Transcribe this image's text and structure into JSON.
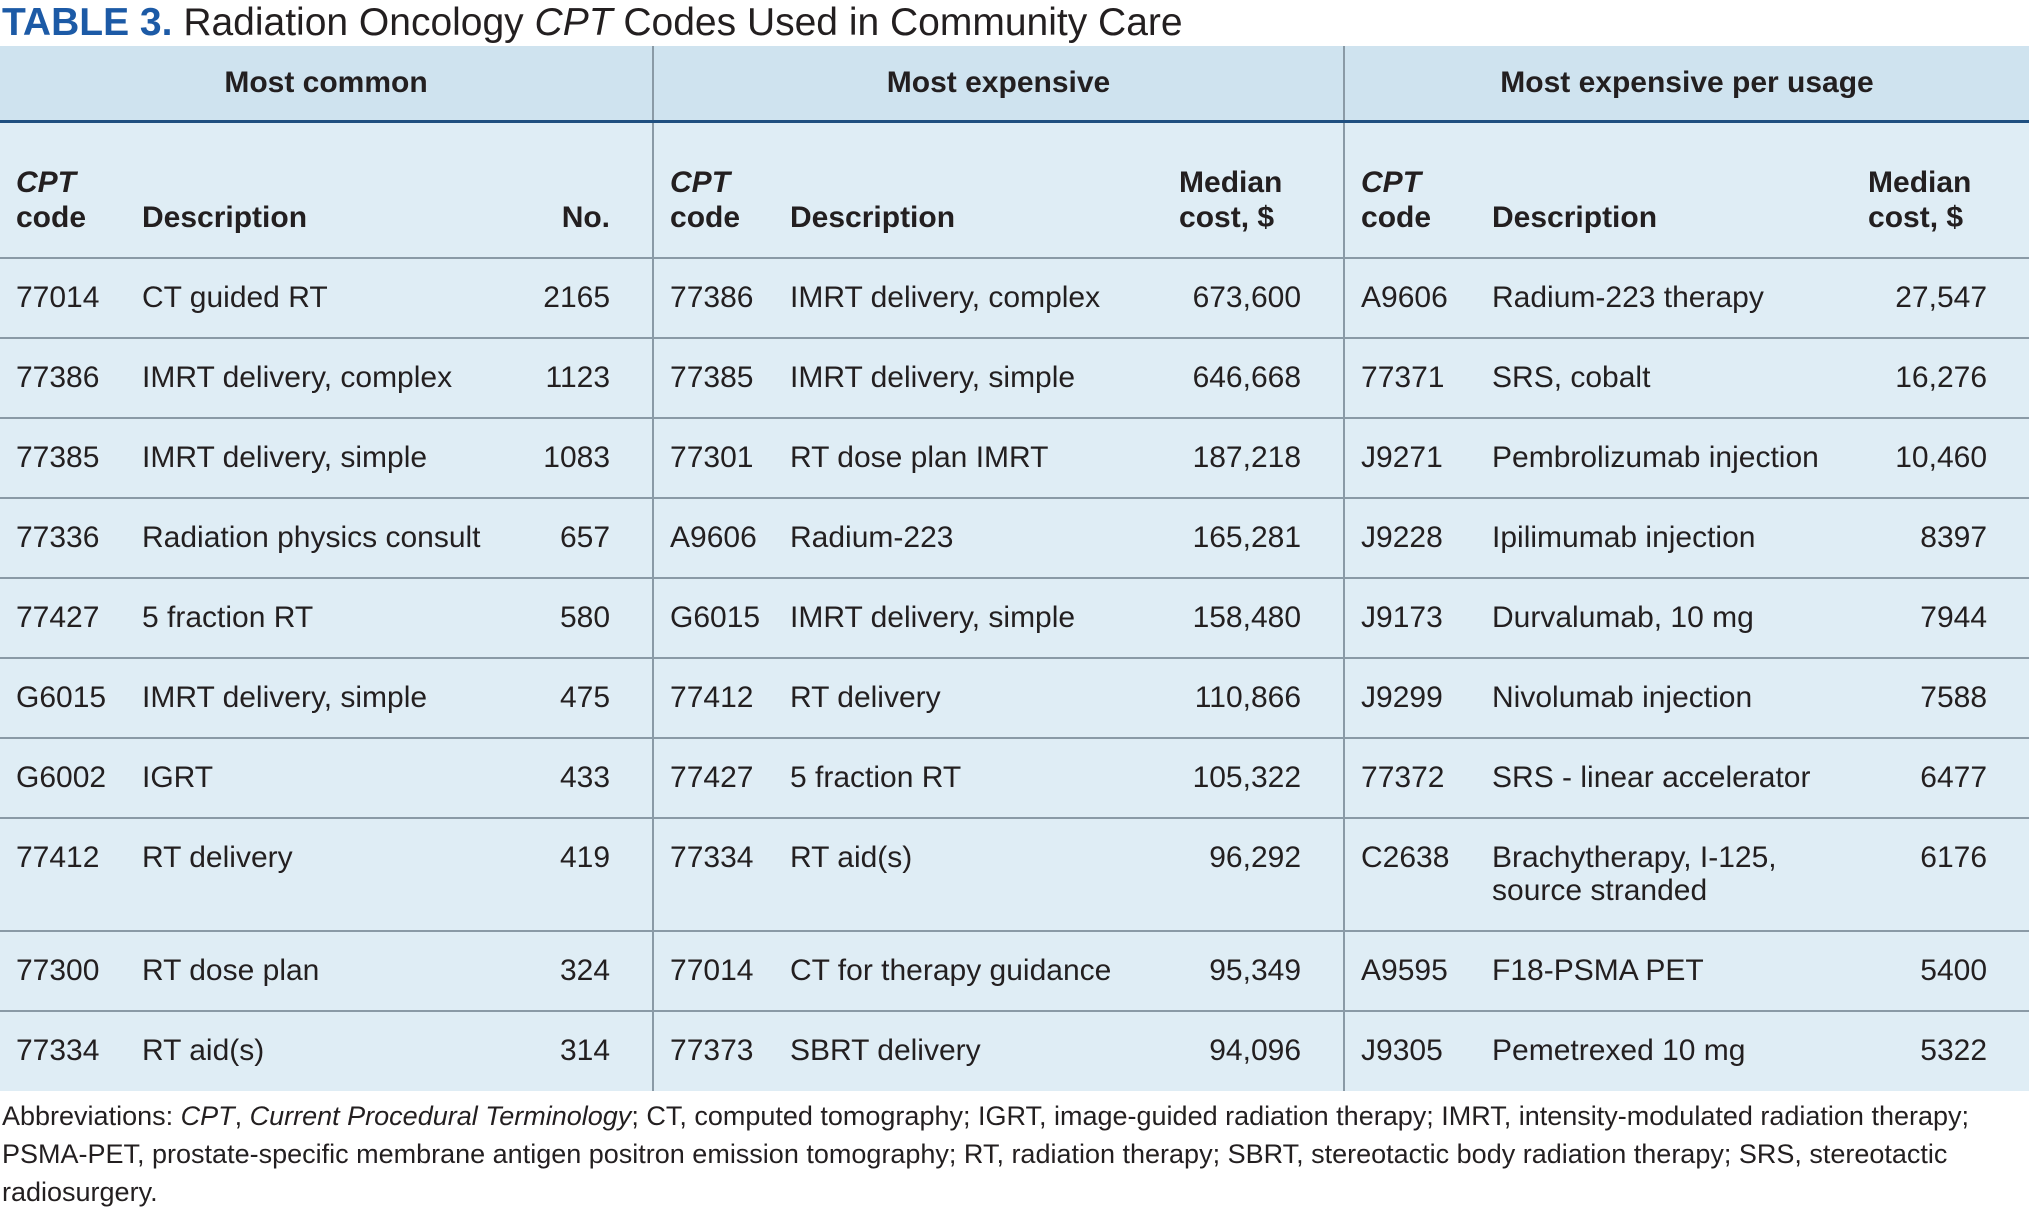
{
  "title": {
    "label": "TABLE 3.",
    "pre": "Radiation Oncology",
    "cpt": "CPT",
    "post": "Codes Used in Community Care"
  },
  "groups": [
    "Most common",
    "Most expensive",
    "Most expensive per usage"
  ],
  "headers": {
    "cpt_label": "CPT",
    "code_label": "code",
    "description": "Description",
    "number": "No.",
    "median_line1": "Median",
    "median_line2": "cost, $"
  },
  "rows": [
    {
      "c1": "77014",
      "d1": "CT guided RT",
      "n1": "2165",
      "c2": "77386",
      "d2": "IMRT delivery, complex",
      "m2": "673,600",
      "c3": "A9606",
      "d3": "Radium-223 therapy",
      "m3": "27,547"
    },
    {
      "c1": "77386",
      "d1": "IMRT delivery, complex",
      "n1": "1123",
      "c2": "77385",
      "d2": "IMRT delivery, simple",
      "m2": "646,668",
      "c3": "77371",
      "d3": "SRS, cobalt",
      "m3": "16,276"
    },
    {
      "c1": "77385",
      "d1": "IMRT delivery, simple",
      "n1": "1083",
      "c2": "77301",
      "d2": "RT dose plan IMRT",
      "m2": "187,218",
      "c3": "J9271",
      "d3": "Pembrolizumab injection",
      "m3": "10,460"
    },
    {
      "c1": "77336",
      "d1": "Radiation physics consult",
      "n1": "657",
      "c2": "A9606",
      "d2": "Radium-223",
      "m2": "165,281",
      "c3": "J9228",
      "d3": "Ipilimumab injection",
      "m3": "8397"
    },
    {
      "c1": "77427",
      "d1": "5 fraction RT",
      "n1": "580",
      "c2": "G6015",
      "d2": "IMRT delivery, simple",
      "m2": "158,480",
      "c3": "J9173",
      "d3": "Durvalumab, 10 mg",
      "m3": "7944"
    },
    {
      "c1": "G6015",
      "d1": "IMRT delivery, simple",
      "n1": "475",
      "c2": "77412",
      "d2": "RT delivery",
      "m2": "110,866",
      "c3": "J9299",
      "d3": "Nivolumab injection",
      "m3": "7588"
    },
    {
      "c1": "G6002",
      "d1": "IGRT",
      "n1": "433",
      "c2": "77427",
      "d2": "5 fraction RT",
      "m2": "105,322",
      "c3": "77372",
      "d3": "SRS - linear accelerator",
      "m3": "6477"
    },
    {
      "c1": "77412",
      "d1": "RT delivery",
      "n1": "419",
      "c2": "77334",
      "d2": "RT aid(s)",
      "m2": "96,292",
      "c3": "C2638",
      "d3": "Brachytherapy, I-125,",
      "d3b": "source stranded",
      "m3": "6176"
    },
    {
      "c1": "77300",
      "d1": "RT dose plan",
      "n1": "324",
      "c2": "77014",
      "d2": "CT for therapy guidance",
      "m2": "95,349",
      "c3": "A9595",
      "d3": "F18-PSMA PET",
      "m3": "5400"
    },
    {
      "c1": "77334",
      "d1": "RT aid(s)",
      "n1": "314",
      "c2": "77373",
      "d2": "SBRT delivery",
      "m2": "94,096",
      "c3": "J9305",
      "d3": "Pemetrexed 10 mg",
      "m3": "5322"
    }
  ],
  "abbreviations": {
    "lead": "Abbreviations: ",
    "cpt": "CPT",
    "sep": ", ",
    "cpt_full": "Current Procedural Terminology",
    "rest": "; CT, computed tomography; IGRT, image-guided radiation therapy; IMRT, intensity-modulated radiation therapy; PSMA-PET, prostate-specific membrane antigen positron emission tomography; RT, radiation therapy; SBRT, stereotactic body radiation therapy; SRS, stereotactic radiosurgery."
  }
}
